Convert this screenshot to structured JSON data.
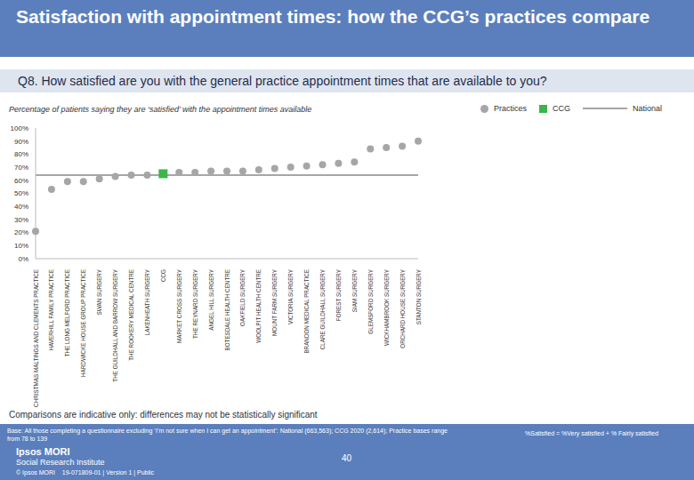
{
  "chart_data": {
    "type": "scatter",
    "title": "Satisfaction with appointment times: how the CCG’s practices compare",
    "subtitle": "Q8. How satisfied are you with the general practice appointment times that are available to you?",
    "caption": "Percentage of patients saying they are ‘satisfied’ with the appointment times available",
    "categories": [
      "CHRISTMAS MALTINGS AND CLEMENTS PRACTICE",
      "HAVERHILL FAMILY PRACTICE",
      "THE LONG MELFORD PRACTICE",
      "HARDWICKE HOUSE GROUP PRACTICE",
      "SWAN SURGERY",
      "THE GUILDHALL AND BARROW SURGERY",
      "THE ROOKERY MEDICAL CENTRE",
      "LAKENHEATH SURGERY",
      "CCG",
      "MARKET CROSS SURGERY",
      "THE REYNARD SURGERY",
      "ANGEL HILL SURGERY",
      "BOTESDALE HEALTH CENTRE",
      "OAKFIELD SURGERY",
      "WOOLPIT HEALTH CENTRE",
      "MOUNT FARM SURGERY",
      "VICTORIA SURGERY",
      "BRANDON MEDICAL PRACTICE",
      "CLARE GUILDHALL SURGERY",
      "FOREST SURGERY",
      "SIAM SURGERY",
      "GLEMSFORD SURGERY",
      "WICKHAMBROOK SURGERY",
      "ORCHARD HOUSE SURGERY",
      "STANTON SURGERY"
    ],
    "series": [
      {
        "name": "Practices",
        "color": "#a6a6a6",
        "marker": "circle",
        "values": [
          21,
          53,
          59,
          59,
          61,
          63,
          64,
          64,
          null,
          66,
          66,
          67,
          67,
          67,
          68,
          69,
          70,
          71,
          72,
          73,
          74,
          84,
          85,
          86,
          90
        ]
      },
      {
        "name": "CCG",
        "color": "#3cb54a",
        "marker": "square",
        "values": [
          null,
          null,
          null,
          null,
          null,
          null,
          null,
          null,
          65,
          null,
          null,
          null,
          null,
          null,
          null,
          null,
          null,
          null,
          null,
          null,
          null,
          null,
          null,
          null,
          null
        ]
      },
      {
        "name": "National",
        "color": "#a6a6a6",
        "type": "line",
        "marker": "none",
        "values": [
          64,
          64,
          64,
          64,
          64,
          64,
          64,
          64,
          64,
          64,
          64,
          64,
          64,
          64,
          64,
          64,
          64,
          64,
          64,
          64,
          64,
          64,
          64,
          64,
          64
        ]
      }
    ],
    "ylim": [
      0,
      100
    ],
    "yticks": [
      {
        "value": 0,
        "label": "0%"
      },
      {
        "value": 10,
        "label": "10%"
      },
      {
        "value": 20,
        "label": "20%"
      },
      {
        "value": 30,
        "label": "30%"
      },
      {
        "value": 40,
        "label": "40%"
      },
      {
        "value": 50,
        "label": "50%"
      },
      {
        "value": 60,
        "label": "60%"
      },
      {
        "value": 70,
        "label": "70%"
      },
      {
        "value": 80,
        "label": "80%"
      },
      {
        "value": 90,
        "label": "90%"
      },
      {
        "value": 100,
        "label": "100%"
      }
    ],
    "grid": false,
    "legend": "top right",
    "notes": [
      "Comparisons are indicative only: differences may not be statistically significant",
      "Base: All those completing a questionnaire excluding ‘I’m not sure when I can get an appointment’: National (663,563); CCG 2020 (2,614); Practice bases range from 78 to 139",
      "%Satisfied = %Very satisfied + % Fairly satisfied",
      "40",
      "Ipsos MORI",
      "Social Research Institute",
      "© Ipsos MORI    19-071809-01 | Version 1 | Public"
    ]
  }
}
